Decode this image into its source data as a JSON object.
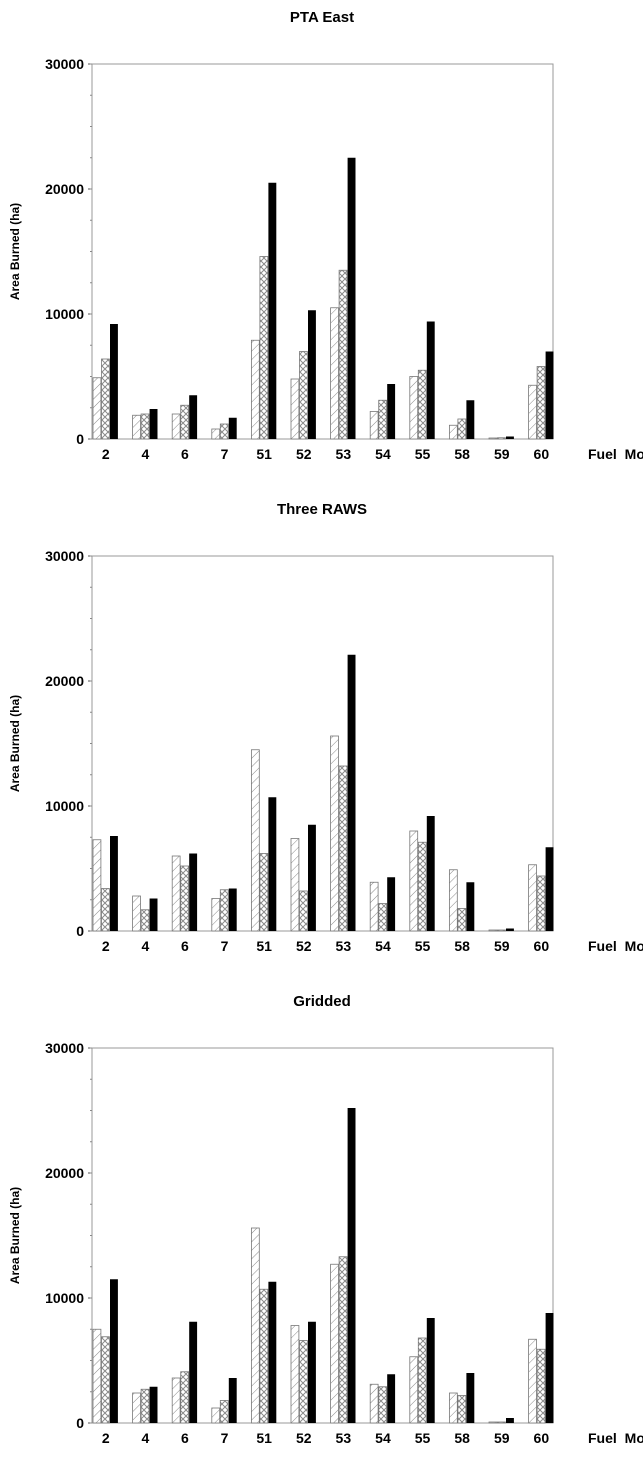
{
  "colors": {
    "series3": "#000000",
    "outline": "#777777",
    "axis": "#999999",
    "text": "#000000"
  },
  "chart_data": [
    {
      "type": "bar",
      "title": "PTA East",
      "xlabel": "Fuel Model",
      "ylabel": "Area Burned (ha)",
      "ylim": [
        0,
        30000
      ],
      "yticks": [
        "0",
        "10000",
        "20000",
        "30000"
      ],
      "categories": [
        "2",
        "4",
        "6",
        "7",
        "51",
        "52",
        "53",
        "54",
        "55",
        "58",
        "59",
        "60"
      ],
      "series": [
        {
          "values": [
            4900,
            1900,
            2000,
            800,
            7900,
            4800,
            10500,
            2200,
            5000,
            1100,
            80,
            4300
          ]
        },
        {
          "values": [
            6400,
            2000,
            2700,
            1200,
            14600,
            7000,
            13500,
            3100,
            5500,
            1600,
            100,
            5800
          ]
        },
        {
          "values": [
            9200,
            2400,
            3500,
            1700,
            20500,
            10300,
            22500,
            4400,
            9400,
            3100,
            200,
            7000
          ]
        }
      ],
      "grid": false
    },
    {
      "type": "bar",
      "title": "Three RAWS",
      "xlabel": "Fuel Model",
      "ylabel": "Area Burned (ha)",
      "ylim": [
        0,
        30000
      ],
      "yticks": [
        "0",
        "10000",
        "20000",
        "30000"
      ],
      "categories": [
        "2",
        "4",
        "6",
        "7",
        "51",
        "52",
        "53",
        "54",
        "55",
        "58",
        "59",
        "60"
      ],
      "series": [
        {
          "values": [
            7300,
            2800,
            6000,
            2600,
            14500,
            7400,
            15600,
            3900,
            8000,
            4900,
            80,
            5300
          ]
        },
        {
          "values": [
            3400,
            1700,
            5200,
            3300,
            6200,
            3200,
            13200,
            2200,
            7100,
            1800,
            80,
            4400
          ]
        },
        {
          "values": [
            7600,
            2600,
            6200,
            3400,
            10700,
            8500,
            22100,
            4300,
            9200,
            3900,
            200,
            6700
          ]
        }
      ],
      "grid": false
    },
    {
      "type": "bar",
      "title": "Gridded",
      "xlabel": "Fuel Model",
      "ylabel": "Area Burned (ha)",
      "ylim": [
        0,
        30000
      ],
      "yticks": [
        "0",
        "10000",
        "20000",
        "30000"
      ],
      "categories": [
        "2",
        "4",
        "6",
        "7",
        "51",
        "52",
        "53",
        "54",
        "55",
        "58",
        "59",
        "60"
      ],
      "series": [
        {
          "values": [
            7500,
            2400,
            3600,
            1200,
            15600,
            7800,
            12700,
            3100,
            5300,
            2400,
            80,
            6700
          ]
        },
        {
          "values": [
            6900,
            2700,
            4100,
            1800,
            10700,
            6600,
            13300,
            2900,
            6800,
            2200,
            80,
            5900
          ]
        },
        {
          "values": [
            11500,
            2900,
            8100,
            3600,
            11300,
            8100,
            25200,
            3900,
            8400,
            4000,
            400,
            8800
          ]
        }
      ],
      "grid": false
    }
  ]
}
